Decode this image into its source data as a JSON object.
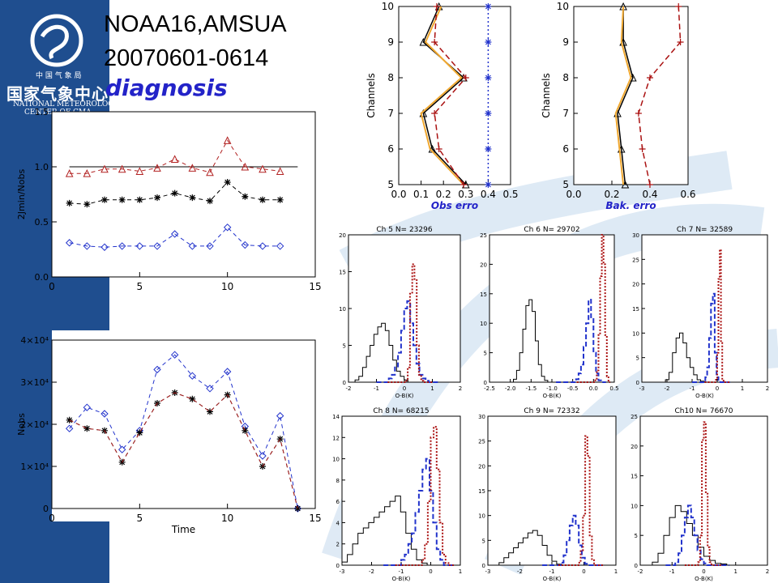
{
  "header": {
    "title_line1": "NOAA16,AMSUA",
    "title_line2": "20070601-0614",
    "diagnosis": "diagnosis",
    "logo_small": "中 国 气 象 局",
    "logo_cn": "国家气象中心",
    "logo_en1": "NATIONAL  METEOROLOGICAL",
    "logo_en2": "CENTER  OF  CMA"
  },
  "colors": {
    "background_band": "#1f4e8f",
    "black": "#000000",
    "red": "#b22222",
    "blue": "#2233cc",
    "orange": "#f0a830",
    "darkred": "#aa1111"
  },
  "chart_data": [
    {
      "id": "ratio",
      "type": "line",
      "ylabel": "2Jmin/Nobs",
      "xlim": [
        0,
        15
      ],
      "ylim": [
        0.0,
        1.5
      ],
      "xticks": [
        "0",
        "5",
        "10",
        "15"
      ],
      "yticks": [
        "0.0",
        "0.5",
        "1.0",
        "1.5"
      ],
      "reference_line": 1.0,
      "x": [
        1,
        2,
        3,
        4,
        5,
        6,
        7,
        8,
        9,
        10,
        11,
        12,
        13
      ],
      "series": [
        {
          "marker": "triangle",
          "color": "#b22222",
          "values": [
            0.94,
            0.94,
            0.98,
            0.98,
            0.96,
            0.99,
            1.07,
            0.99,
            0.95,
            1.24,
            1.0,
            0.98,
            0.96
          ]
        },
        {
          "marker": "star",
          "color": "#000000",
          "values": [
            0.67,
            0.66,
            0.7,
            0.7,
            0.7,
            0.72,
            0.76,
            0.72,
            0.69,
            0.86,
            0.73,
            0.7,
            0.7
          ]
        },
        {
          "marker": "diamond",
          "color": "#2233cc",
          "values": [
            0.31,
            0.28,
            0.27,
            0.28,
            0.28,
            0.28,
            0.39,
            0.28,
            0.28,
            0.45,
            0.29,
            0.28,
            0.28
          ]
        }
      ]
    },
    {
      "id": "nobs",
      "type": "line",
      "xlabel": "Time",
      "ylabel": "Nobs",
      "xlim": [
        0,
        15
      ],
      "ylim": [
        0,
        40000
      ],
      "xticks": [
        "0",
        "5",
        "10",
        "15"
      ],
      "yticks": [
        "0",
        "1×10⁴",
        "2×10⁴",
        "3×10⁴",
        "4×10⁴"
      ],
      "x": [
        1,
        2,
        3,
        4,
        5,
        6,
        7,
        8,
        9,
        10,
        11,
        12,
        13,
        14
      ],
      "series": [
        {
          "marker": "diamond",
          "color": "#2233cc",
          "values": [
            19000,
            24000,
            22500,
            14000,
            18500,
            33000,
            36500,
            31500,
            28500,
            32500,
            19500,
            12500,
            22000,
            0
          ]
        },
        {
          "marker": "star",
          "color": "#000000",
          "values": [
            21000,
            19000,
            18500,
            11000,
            18000,
            25000,
            27500,
            26000,
            23000,
            27000,
            18500,
            10000,
            16500,
            0
          ]
        },
        {
          "marker": "none",
          "color": "#b22222",
          "values": [
            21000,
            19000,
            18500,
            11000,
            18000,
            25000,
            27500,
            26000,
            23000,
            27000,
            18500,
            10000,
            16500,
            0
          ]
        }
      ]
    },
    {
      "id": "obs_err",
      "type": "line",
      "xlabel": "Obs erro",
      "ylabel": "Channels",
      "xlim": [
        0.0,
        0.5
      ],
      "ylim": [
        5,
        10
      ],
      "xticks": [
        "0.0",
        "0.1",
        "0.2",
        "0.3",
        "0.4",
        "0.5"
      ],
      "yticks": [
        "5",
        "6",
        "7",
        "8",
        "9",
        "10"
      ],
      "y": [
        5,
        6,
        7,
        8,
        9,
        10
      ],
      "series": [
        {
          "color": "#000000",
          "dash": "solid",
          "marker": "triangle",
          "values": [
            0.3,
            0.15,
            0.11,
            0.29,
            0.11,
            0.18
          ]
        },
        {
          "color": "#f0a830",
          "dash": "solid",
          "marker": "none",
          "values": [
            0.29,
            0.14,
            0.1,
            0.28,
            0.12,
            0.19
          ]
        },
        {
          "color": "#aa1111",
          "dash": "dash",
          "marker": "plus",
          "values": [
            0.29,
            0.18,
            0.16,
            0.3,
            0.16,
            0.17
          ]
        },
        {
          "color": "#2233cc",
          "dash": "dot",
          "marker": "star",
          "values": [
            0.4,
            0.4,
            0.4,
            0.4,
            0.4,
            0.4
          ]
        }
      ]
    },
    {
      "id": "bak_err",
      "type": "line",
      "xlabel": "Bak. erro",
      "ylabel": "Channels",
      "xlim": [
        0.0,
        0.6
      ],
      "ylim": [
        5,
        10
      ],
      "xticks": [
        "0.0",
        "0.2",
        "0.4",
        "0.6"
      ],
      "yticks": [
        "5",
        "6",
        "7",
        "8",
        "9",
        "10"
      ],
      "y": [
        5,
        6,
        7,
        8,
        9,
        10
      ],
      "series": [
        {
          "color": "#000000",
          "dash": "solid",
          "marker": "triangle",
          "values": [
            0.27,
            0.25,
            0.23,
            0.31,
            0.26,
            0.26
          ]
        },
        {
          "color": "#f0a830",
          "dash": "solid",
          "marker": "none",
          "values": [
            0.26,
            0.24,
            0.22,
            0.3,
            0.25,
            0.26
          ]
        },
        {
          "color": "#aa1111",
          "dash": "dash",
          "marker": "plus",
          "values": [
            0.4,
            0.36,
            0.34,
            0.4,
            0.56,
            0.55
          ]
        }
      ]
    }
  ],
  "histograms": [
    {
      "title": "Ch 5 N= 23296",
      "xlabel": "O-B(K)",
      "xlim": [
        -2,
        2
      ],
      "ymax": 20,
      "xticks": [
        "-2",
        "-1",
        "0",
        "1",
        "2"
      ],
      "yticks": [
        "0",
        "5",
        "10",
        "15",
        "20"
      ],
      "black": [
        0,
        0.3,
        0.8,
        2,
        3.5,
        5,
        6.5,
        7.5,
        8,
        7,
        5,
        3,
        1.5,
        0.8,
        0.3,
        0,
        0,
        0,
        0,
        0
      ],
      "blue": [
        0,
        0,
        0,
        0,
        0.5,
        1,
        2,
        4,
        7,
        10,
        11,
        8,
        5,
        2.5,
        1,
        0.5,
        0.2,
        0,
        0,
        0
      ],
      "red": [
        0,
        0,
        0,
        0,
        0,
        0,
        0,
        0,
        0.2,
        2,
        12,
        16,
        14,
        5,
        1,
        0.2,
        0,
        0,
        0,
        0
      ],
      "ranges": [
        -1.9,
        0.8,
        -1.0,
        1.2,
        -0.6,
        1.0
      ]
    },
    {
      "title": "Ch 6 N= 29702",
      "xlabel": "O-B(K)",
      "xlim": [
        -2.5,
        0.5
      ],
      "ymax": 25,
      "xticks": [
        "-2.5",
        "-2.0",
        "-1.5",
        "-1.0",
        "-0.5",
        "0.0",
        "0.5"
      ],
      "yticks": [
        "0",
        "5",
        "10",
        "15",
        "20",
        "25"
      ],
      "black": [
        0,
        0.5,
        2,
        5,
        9,
        13,
        14,
        12,
        7,
        3,
        1,
        0.3,
        0,
        0,
        0,
        0,
        0,
        0,
        0,
        0
      ],
      "blue": [
        0,
        0,
        0,
        0,
        0,
        0,
        0,
        0,
        0.5,
        1.5,
        3,
        6,
        10,
        14,
        11,
        5,
        1.5,
        0.3,
        0,
        0
      ],
      "red": [
        0,
        0,
        0,
        0,
        0,
        0,
        0,
        0,
        0,
        0,
        0,
        0.3,
        2,
        8,
        18,
        25,
        20,
        8,
        1,
        0
      ],
      "ranges": [
        -2.0,
        -0.5,
        -0.9,
        0.3,
        -0.4,
        0.4
      ]
    },
    {
      "title": "Ch 7 N= 32589",
      "xlabel": "O-B(K)",
      "xlim": [
        -3,
        2
      ],
      "ymax": 30,
      "xticks": [
        "-3",
        "-2",
        "-1",
        "0",
        "1",
        "2"
      ],
      "yticks": [
        "0",
        "5",
        "10",
        "15",
        "20",
        "25",
        "30"
      ],
      "black": [
        0,
        0.5,
        2,
        6,
        9,
        10,
        8,
        5,
        3,
        1.5,
        0.5,
        0.2,
        0,
        0,
        0,
        0,
        0,
        0,
        0,
        0
      ],
      "blue": [
        0,
        0,
        0,
        0,
        0,
        0,
        0.3,
        1,
        3,
        9,
        16,
        18,
        6,
        1,
        0.3,
        0,
        0,
        0,
        0,
        0
      ],
      "red": [
        0,
        0,
        0,
        0,
        0,
        0,
        0,
        0,
        0,
        0.5,
        6,
        21,
        27,
        8,
        0.5,
        0,
        0,
        0,
        0,
        0
      ],
      "ranges": [
        -2.2,
        0.6,
        -1.0,
        0.5,
        -0.5,
        0.5
      ]
    },
    {
      "title": "Ch 8 N= 68215",
      "xlabel": "O-B(K)",
      "xlim": [
        -3,
        1
      ],
      "ymax": 14,
      "xticks": [
        "-3",
        "-2",
        "-1",
        "0",
        "1"
      ],
      "yticks": [
        "0",
        "2",
        "4",
        "6",
        "8",
        "10",
        "12",
        "14"
      ],
      "black": [
        0.3,
        1,
        2,
        3,
        3.5,
        4,
        4.5,
        5,
        5.5,
        6,
        6.5,
        5,
        3,
        1.5,
        0.5,
        0.2,
        0,
        0,
        0,
        0
      ],
      "blue": [
        0,
        0,
        0,
        0,
        0,
        0.5,
        1,
        2,
        3,
        5,
        7,
        9,
        10,
        7,
        4,
        1.5,
        0.5,
        0,
        0,
        0
      ],
      "red": [
        0,
        0,
        0,
        0,
        0,
        0,
        0,
        0,
        0,
        0.5,
        2,
        6,
        12,
        13,
        9,
        4,
        1,
        0.2,
        0,
        0
      ],
      "ranges": [
        -3.0,
        0.6,
        -1.6,
        0.8,
        -1.2,
        0.8
      ]
    },
    {
      "title": "Ch 9 N= 72332",
      "xlabel": "O-B(K)",
      "xlim": [
        -3,
        1
      ],
      "ymax": 30,
      "xticks": [
        "-3",
        "-2",
        "-1",
        "0",
        "1"
      ],
      "yticks": [
        "0",
        "5",
        "10",
        "15",
        "20",
        "25",
        "30"
      ],
      "black": [
        0,
        0.5,
        1.5,
        2.5,
        3.5,
        4.5,
        5.5,
        6.5,
        7,
        6,
        4,
        2,
        0.8,
        0.2,
        0,
        0,
        0,
        0,
        0,
        0
      ],
      "blue": [
        0,
        0,
        0,
        0,
        0,
        0,
        0.5,
        2,
        5,
        8,
        10,
        8,
        4,
        1.5,
        0.3,
        0,
        0,
        0,
        0,
        0
      ],
      "red": [
        0,
        0,
        0,
        0,
        0,
        0,
        0,
        0,
        0,
        0.5,
        3,
        10,
        26,
        22,
        6,
        1,
        0,
        0,
        0,
        0
      ],
      "ranges": [
        -2.8,
        0.2,
        -1.3,
        0.6,
        -0.8,
        0.6
      ]
    },
    {
      "title": "Ch10 N= 76670",
      "xlabel": "O-B(K)",
      "xlim": [
        -2,
        2
      ],
      "ymax": 25,
      "xticks": [
        "-2",
        "-1",
        "0",
        "1",
        "2"
      ],
      "yticks": [
        "0",
        "5",
        "10",
        "15",
        "20",
        "25"
      ],
      "black": [
        0,
        0.5,
        2,
        5,
        8,
        10,
        9,
        7,
        5,
        3,
        1.5,
        0.8,
        0.3,
        0.2,
        0,
        0,
        0,
        0,
        0,
        0
      ],
      "blue": [
        0,
        0,
        0,
        0.5,
        2,
        5,
        8,
        10,
        8,
        5,
        2.5,
        1,
        0.3,
        0,
        0,
        0,
        0,
        0,
        0,
        0
      ],
      "red": [
        0,
        0,
        0,
        0,
        0,
        0,
        0,
        0.5,
        5,
        21,
        24,
        12,
        3,
        0.5,
        0,
        0,
        0,
        0,
        0,
        0
      ],
      "ranges": [
        -1.8,
        1.8,
        -1.2,
        0.8,
        -0.6,
        0.6
      ]
    }
  ]
}
